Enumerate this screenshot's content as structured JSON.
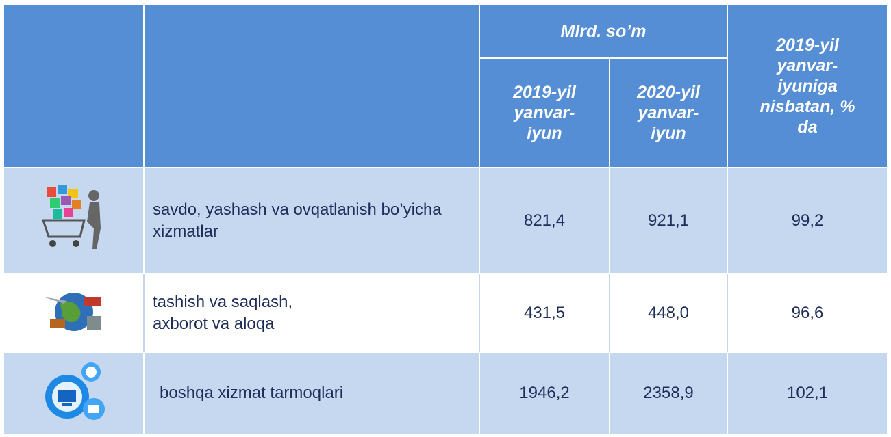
{
  "table": {
    "header": {
      "group": "Mlrd. so’m",
      "col_2019": "2019-yil yanvar-iyun",
      "col_2020": "2020-yil yanvar-iyun",
      "col_ratio": "2019-yil yanvar-iyuniga nisbatan, % da"
    },
    "rows": [
      [
        "savdo, yashash va ovqatlanish bo’yicha xizmatlar",
        "821,4",
        "921,1",
        "99,2"
      ],
      [
        "tashish va saqlash, axborot va aloqa",
        "431,5",
        "448,0",
        "96,6"
      ],
      [
        "boshqa xizmat tarmoqlari",
        "1946,2",
        "2358,9",
        "102,1"
      ]
    ]
  }
}
